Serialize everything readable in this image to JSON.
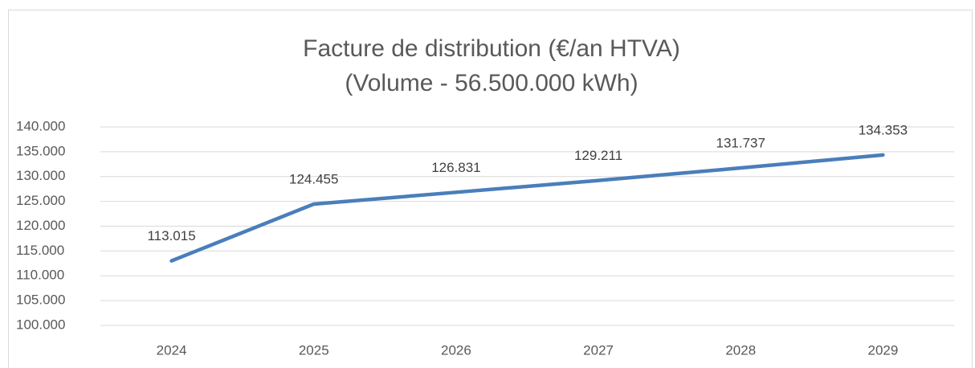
{
  "chart_data": {
    "type": "line",
    "title": "Facture de distribution (€/an HTVA)",
    "subtitle": "(Volume - 56.500.000 kWh)",
    "categories": [
      "2024",
      "2025",
      "2026",
      "2027",
      "2028",
      "2029"
    ],
    "series": [
      {
        "name": "Facture de distribution",
        "color": "#4a7ebb",
        "values": [
          113015,
          124455,
          126831,
          129211,
          131737,
          134353
        ],
        "value_labels": [
          "113.015",
          "124.455",
          "126.831",
          "129.211",
          "131.737",
          "134.353"
        ]
      }
    ],
    "ylim": [
      100000,
      140000
    ],
    "yticks": [
      {
        "value": 100000,
        "label": "100.000"
      },
      {
        "value": 105000,
        "label": "105.000"
      },
      {
        "value": 110000,
        "label": "110.000"
      },
      {
        "value": 115000,
        "label": "115.000"
      },
      {
        "value": 120000,
        "label": "120.000"
      },
      {
        "value": 125000,
        "label": "125.000"
      },
      {
        "value": 130000,
        "label": "130.000"
      },
      {
        "value": 135000,
        "label": "135.000"
      },
      {
        "value": 140000,
        "label": "140.000"
      }
    ],
    "grid": true
  }
}
